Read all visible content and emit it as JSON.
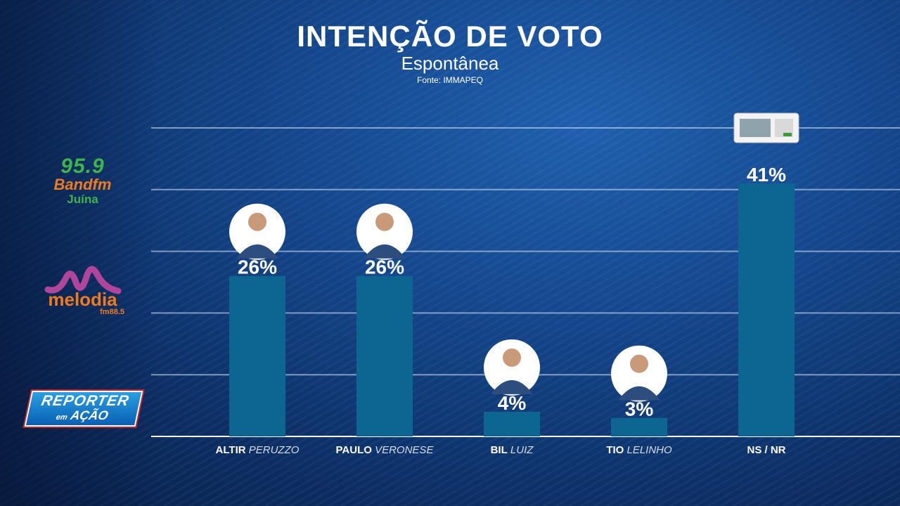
{
  "chart_data": {
    "type": "bar",
    "title": "INTENÇÃO DE VOTO",
    "subtitle": "Espontânea",
    "source": "Fonte: IMMAPEQ",
    "ylim": [
      0,
      50
    ],
    "grid": true,
    "categories": [
      {
        "first": "ALTIR",
        "last": "PERUZZO",
        "value": 26,
        "label": "26%",
        "avatar": "candidate-photo"
      },
      {
        "first": "PAULO",
        "last": "VERONESE",
        "value": 26,
        "label": "26%",
        "avatar": "candidate-photo"
      },
      {
        "first": "BIL",
        "last": "LUIZ",
        "value": 4,
        "label": "4%",
        "avatar": "candidate-photo"
      },
      {
        "first": "TIO",
        "last": "LELINHO",
        "value": 3,
        "label": "3%",
        "avatar": "candidate-photo"
      },
      {
        "first": "NS / NR",
        "last": "",
        "value": 41,
        "label": "41%",
        "avatar": "ballot-box-icon"
      }
    ],
    "bar_color": "#0d6591"
  },
  "logos": {
    "band": {
      "number": "95.9",
      "name": "Bandfm",
      "city": "Juína"
    },
    "melodia": {
      "name": "melodia",
      "freq": "fm88.5"
    },
    "reporter": {
      "top": "REPORTER",
      "small": "em",
      "bottom": "AÇÃO"
    }
  }
}
